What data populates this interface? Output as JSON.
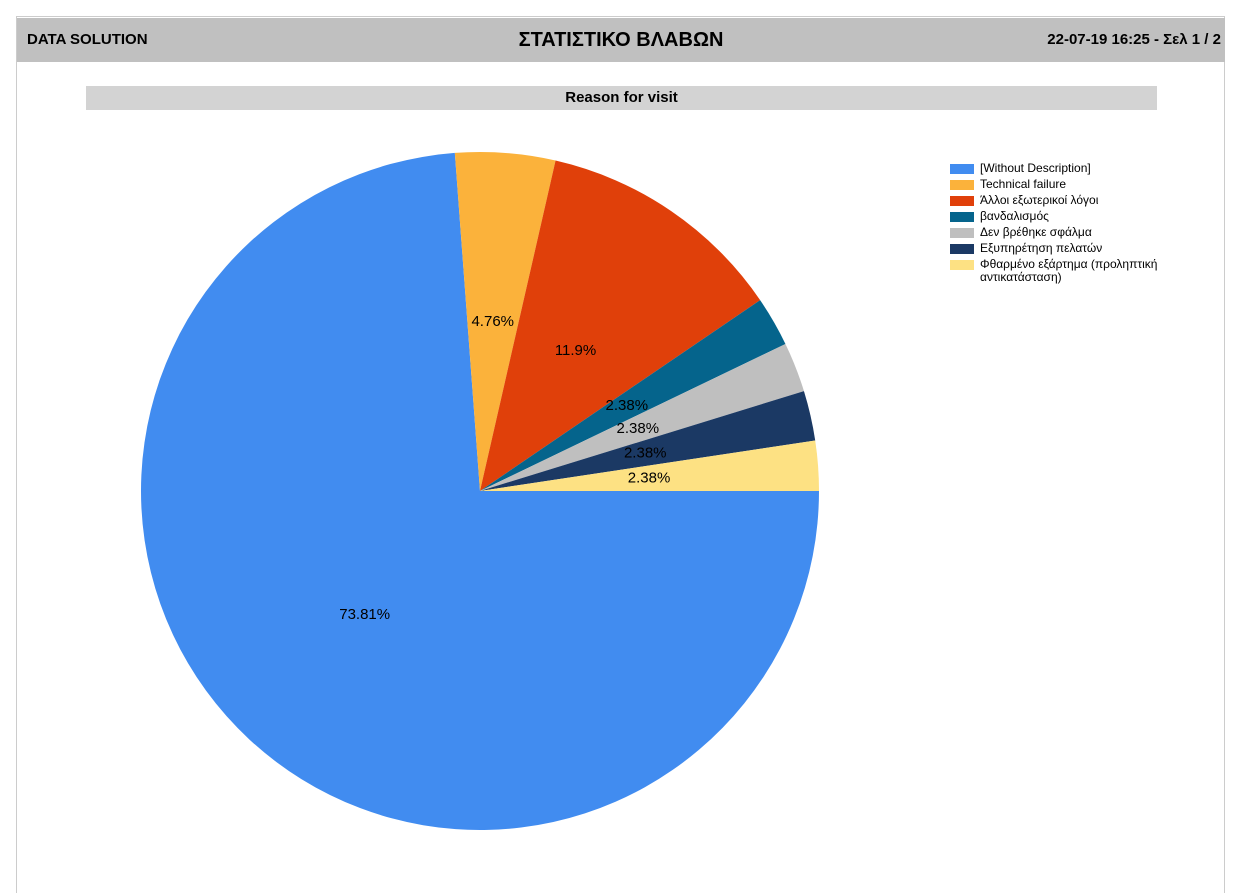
{
  "header": {
    "left": "DATA SOLUTION",
    "title": "ΣΤΑΤΙΣΤΙΚΟ ΒΛΑΒΩΝ",
    "right": "22-07-19 16:25 - Σελ 1 / 2"
  },
  "chart_data": {
    "type": "pie",
    "title": "Reason for visit",
    "categories": [
      "[Without Description]",
      "Technical failure",
      "Άλλοι εξωτερικοί λόγοι",
      "βανδαλισμός",
      "Δεν βρέθηκε σφάλμα",
      "Εξυπηρέτηση πελατών",
      "Φθαρμένο εξάρτημα (προληπτική αντικατάσταση)"
    ],
    "values": [
      73.81,
      4.76,
      11.9,
      2.38,
      2.38,
      2.38,
      2.38
    ],
    "value_labels": [
      "73.81%",
      "4.76%",
      "11.9%",
      "2.38%",
      "2.38%",
      "2.38%",
      "2.38%"
    ],
    "colors": [
      "#418cf0",
      "#fbb23b",
      "#e0400a",
      "#05648c",
      "#bfbfbf",
      "#1b3964",
      "#fde183"
    ],
    "legend": "top-right"
  }
}
